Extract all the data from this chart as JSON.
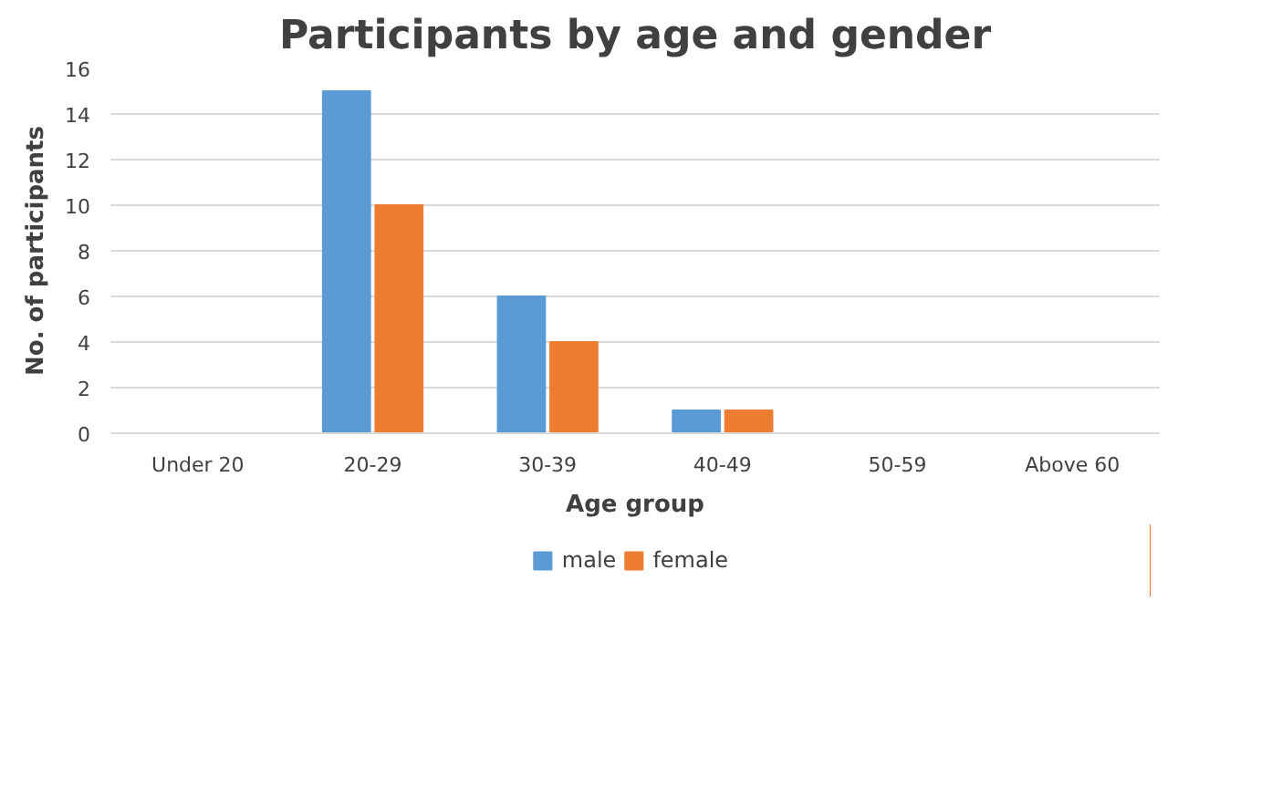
{
  "chart_data": {
    "type": "bar",
    "title": "Participants by age and gender",
    "xlabel": "Age group",
    "ylabel": "No. of participants",
    "categories": [
      "Under 20",
      "20-29",
      "30-39",
      "40-49",
      "50-59",
      "Above 60"
    ],
    "series": [
      {
        "name": "male",
        "color": "#5b9bd5",
        "values": [
          0,
          15,
          6,
          1,
          0,
          0
        ]
      },
      {
        "name": "female",
        "color": "#ed7d31",
        "values": [
          0,
          10,
          4,
          1,
          0,
          0
        ]
      }
    ],
    "ylim": [
      0,
      16
    ],
    "yticks": [
      0,
      2,
      4,
      6,
      8,
      10,
      12,
      14,
      16
    ],
    "grid": "y",
    "legend": "bottom"
  }
}
